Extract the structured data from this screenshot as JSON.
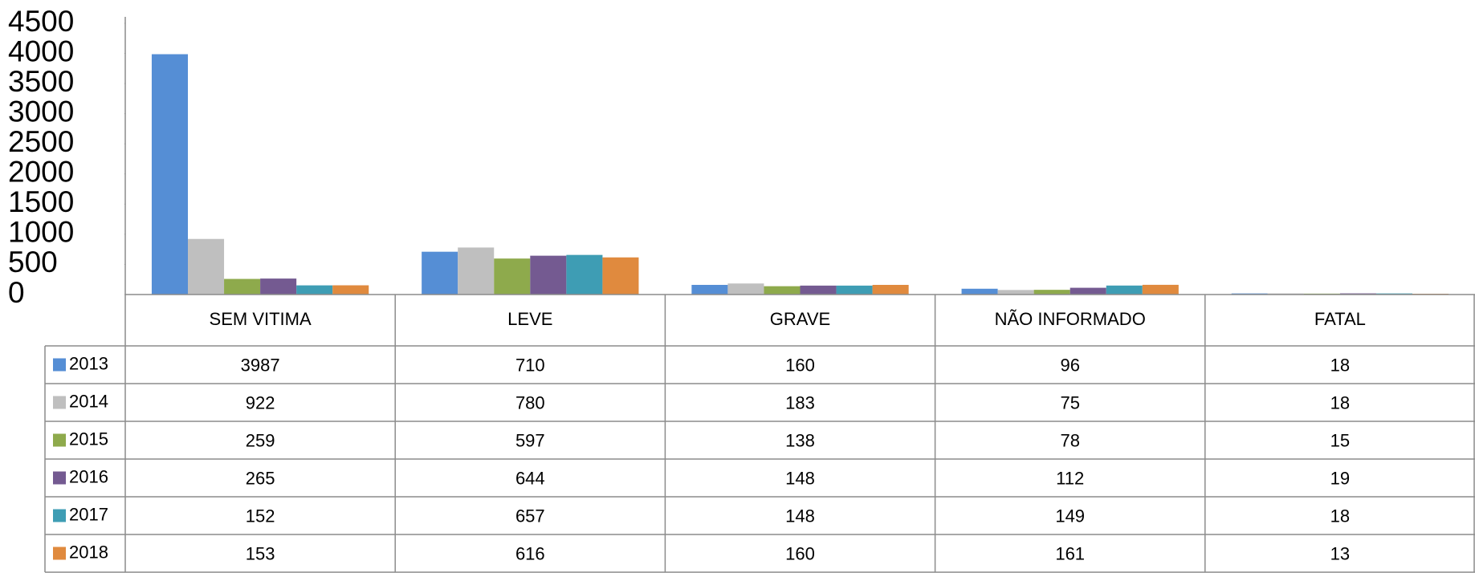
{
  "chart_data": {
    "type": "bar",
    "categories": [
      "SEM VITIMA",
      "LEVE",
      "GRAVE",
      "NÃO INFORMADO",
      "FATAL"
    ],
    "series": [
      {
        "name": "2013",
        "color": "#558ed5",
        "values": [
          3987,
          710,
          160,
          96,
          18
        ]
      },
      {
        "name": "2014",
        "color": "#bfbfbf",
        "values": [
          922,
          780,
          183,
          75,
          18
        ]
      },
      {
        "name": "2015",
        "color": "#8eaa4c",
        "values": [
          259,
          597,
          138,
          78,
          15
        ]
      },
      {
        "name": "2016",
        "color": "#745a91",
        "values": [
          265,
          644,
          148,
          112,
          19
        ]
      },
      {
        "name": "2017",
        "color": "#3e9db4",
        "values": [
          152,
          657,
          148,
          149,
          18
        ]
      },
      {
        "name": "2018",
        "color": "#e08a3e",
        "values": [
          153,
          616,
          160,
          161,
          13
        ]
      }
    ],
    "ylim": [
      0,
      4500
    ],
    "yticks": [
      0,
      500,
      1000,
      1500,
      2000,
      2500,
      3000,
      3500,
      4000,
      4500
    ]
  }
}
